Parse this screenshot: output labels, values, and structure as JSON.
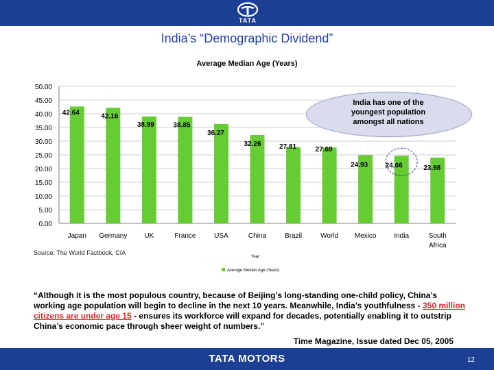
{
  "header": {
    "logo_text": "TATA",
    "brand_color": "#1c3f94"
  },
  "slide": {
    "title": "India’s “Demographic Dividend”"
  },
  "chart_data": {
    "type": "bar",
    "title": "Average Median Age (Years)",
    "xlabel": "Year",
    "ylabel": "",
    "ylim": [
      0,
      50
    ],
    "y_ticks": [
      "50.00",
      "45.00",
      "40.00",
      "35.00",
      "30.00",
      "25.00",
      "20.00",
      "15.00",
      "10.00",
      "5.00",
      "0.00"
    ],
    "categories": [
      "Japan",
      "Germany",
      "UK",
      "France",
      "USA",
      "China",
      "Brazil",
      "World",
      "Mexico",
      "India",
      "South Africa"
    ],
    "values": [
      42.64,
      42.16,
      38.99,
      38.85,
      36.27,
      32.26,
      27.81,
      27.69,
      24.93,
      24.66,
      23.98
    ],
    "value_labels": [
      "42.64",
      "42.16",
      "38.99",
      "38.85",
      "36.27",
      "32.26",
      "27.81",
      "27.69",
      "24.93",
      "24.66",
      "23.98"
    ],
    "legend": "Average Median Age (Years)",
    "legend_position": "bottom",
    "grid": true,
    "bar_color": "#66cc33",
    "highlighted_category": "India"
  },
  "source": "Source: The World Factbook, CIA",
  "callout": "India has one of the youngest population amongst all nations",
  "quote": {
    "before": "“Although it is the most populous country, because of Beijing’s long-standing one-child policy, China’s working age population will begin to decline in the next 10 years. Meanwhile, India’s youthfulness - ",
    "highlight": "350 million citizens are under age 15",
    "after": " - ensures its workforce will expand for decades, potentially enabling it to outstrip China’s economic pace through sheer weight of numbers.”"
  },
  "attribution": "Time Magazine, Issue dated Dec 05, 2005",
  "footer": {
    "brand": "TATA MOTORS",
    "page_number": "12"
  }
}
